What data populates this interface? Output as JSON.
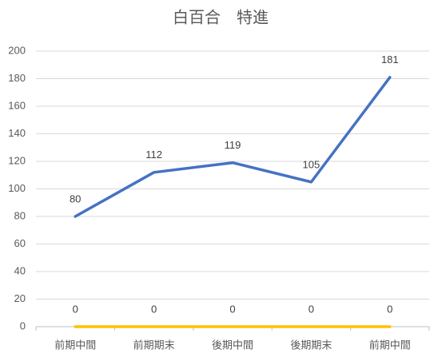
{
  "chart_data": {
    "type": "line",
    "title": "白百合　特進",
    "categories": [
      "前期中間",
      "前期期末",
      "後期中間",
      "後期期末",
      "前期中間"
    ],
    "series": [
      {
        "color": "#4472c4",
        "values": [
          80,
          112,
          119,
          105,
          181
        ]
      },
      {
        "color": "#ffc000",
        "values": [
          0,
          0,
          0,
          0,
          0
        ]
      }
    ],
    "ylim": [
      0,
      200
    ],
    "yticks": [
      0,
      20,
      40,
      60,
      80,
      100,
      120,
      140,
      160,
      180,
      200
    ],
    "grid": true
  }
}
